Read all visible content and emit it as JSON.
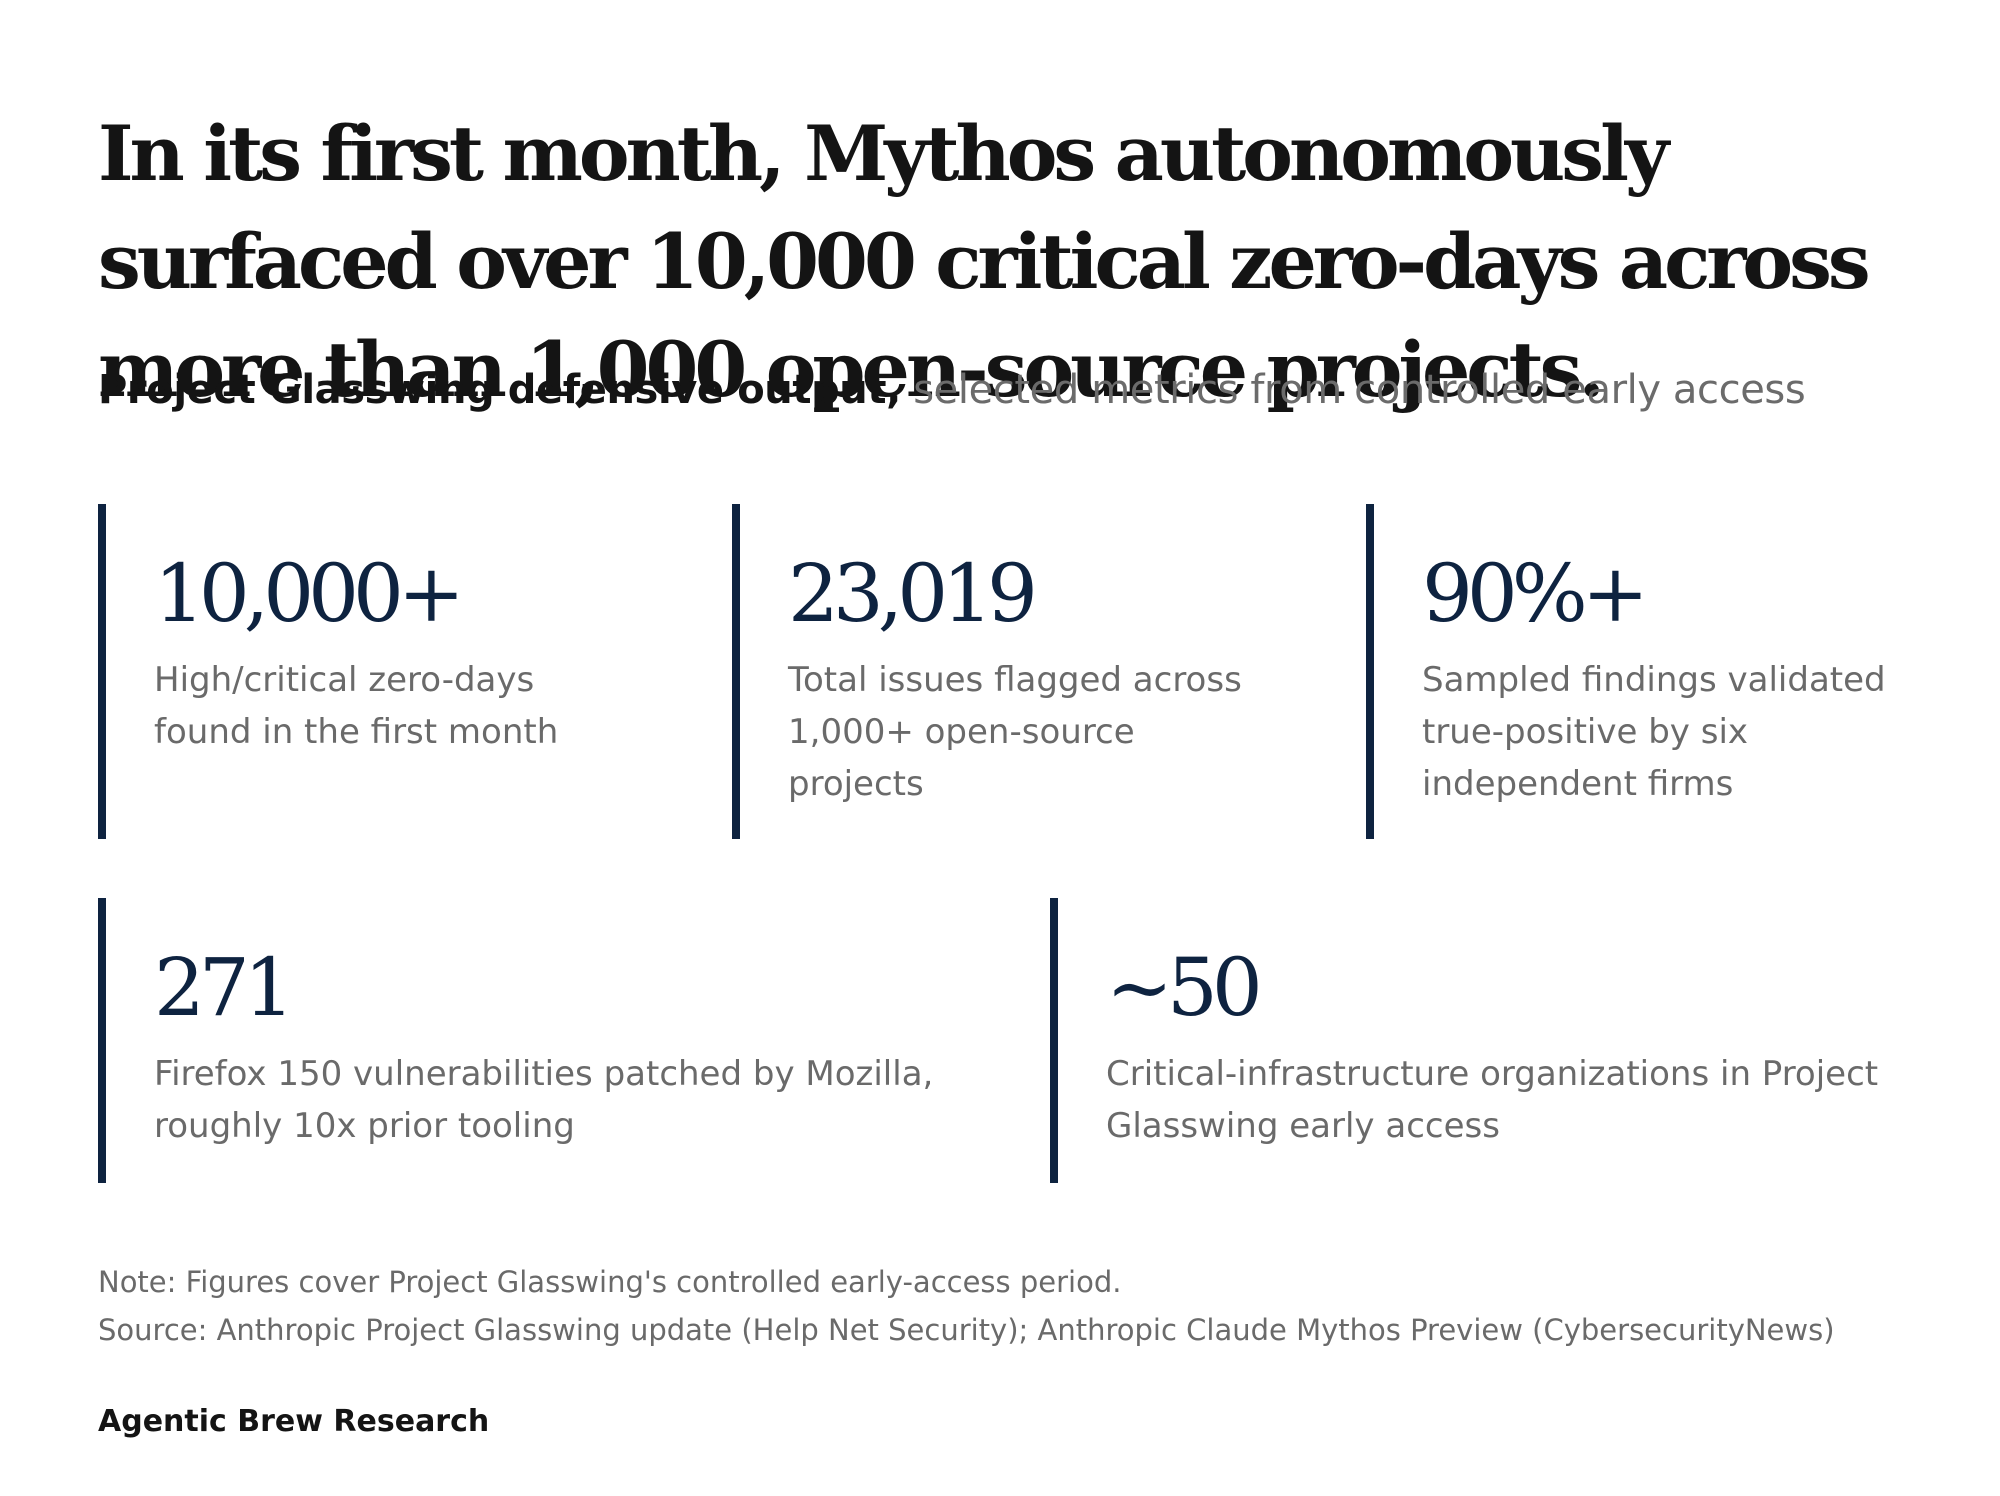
{
  "headline": "In its first month, Mythos autonomously surfaced over 10,000 critical zero-days across more than 1,000 open-source projects.",
  "subtitle": {
    "strong": "Project Glasswing defensive output,",
    "light": "selected metrics from controlled early access"
  },
  "stats": [
    {
      "value": "10,000+",
      "label": "High/critical zero-days found in the first month"
    },
    {
      "value": "23,019",
      "label": "Total issues flagged across 1,000+ open-source projects"
    },
    {
      "value": "90%+",
      "label": "Sampled findings validated true-positive by six independent firms"
    },
    {
      "value": "271",
      "label": "Firefox 150 vulnerabilities patched by Mozilla, roughly 10x prior tooling"
    },
    {
      "value": "~50",
      "label": "Critical-infrastructure organizations in Project Glasswing early access"
    }
  ],
  "note": "Note: Figures cover Project Glasswing's controlled early-access period.",
  "source": "Source: Anthropic Project Glasswing update (Help Net Security); Anthropic Claude Mythos Preview (CybersecurityNews)",
  "brand": "Agentic Brew Research",
  "colors": {
    "accent": "#0e2340",
    "text": "#141414",
    "muted": "#6a6a6a"
  }
}
